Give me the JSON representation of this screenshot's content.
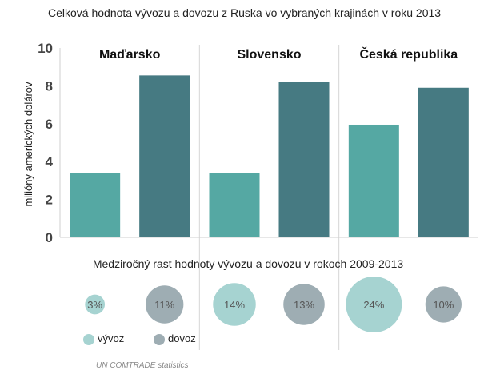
{
  "title": "Celková hodnota vývozu a dovozu z Ruska vo vybraných krajinách v roku 2013",
  "subtitle": "Medziročný rast hodnoty vývozu a dovozu v rokoch 2009-2013",
  "source": "UN COMTRADE statistics",
  "legend": {
    "export_label": "vývoz",
    "import_label": "dovoz"
  },
  "colors": {
    "export": "#55a8a3",
    "import": "#467a82",
    "export_bubble": "#a6d3d1",
    "import_bubble": "#9eadb3"
  },
  "chart_data": [
    {
      "type": "bar",
      "categories": [
        "Maďarsko",
        "Slovensko",
        "Česká republika"
      ],
      "series": [
        {
          "name": "vývoz",
          "values": [
            3.4,
            3.4,
            5.95
          ]
        },
        {
          "name": "dovoz",
          "values": [
            8.55,
            8.2,
            7.9
          ]
        }
      ],
      "title": "Celková hodnota vývozu a dovozu z Ruska vo vybraných krajinách v roku 2013",
      "xlabel": "",
      "ylabel": "milióny amerických dolárov",
      "ylim": [
        0,
        10
      ],
      "yticks": [
        0,
        2,
        4,
        6,
        8,
        10
      ],
      "grid": false,
      "legend": "bottom-left"
    },
    {
      "type": "scatter",
      "title": "Medziročný rast hodnoty vývozu a dovozu v rokoch 2009-2013",
      "categories": [
        "Maďarsko",
        "Slovensko",
        "Česká republika"
      ],
      "series": [
        {
          "name": "vývoz",
          "values": [
            3,
            14,
            24
          ],
          "labels": [
            "3%",
            "14%",
            "24%"
          ]
        },
        {
          "name": "dovoz",
          "values": [
            11,
            13,
            10
          ],
          "labels": [
            "11%",
            "13%",
            "10%"
          ]
        }
      ]
    }
  ]
}
